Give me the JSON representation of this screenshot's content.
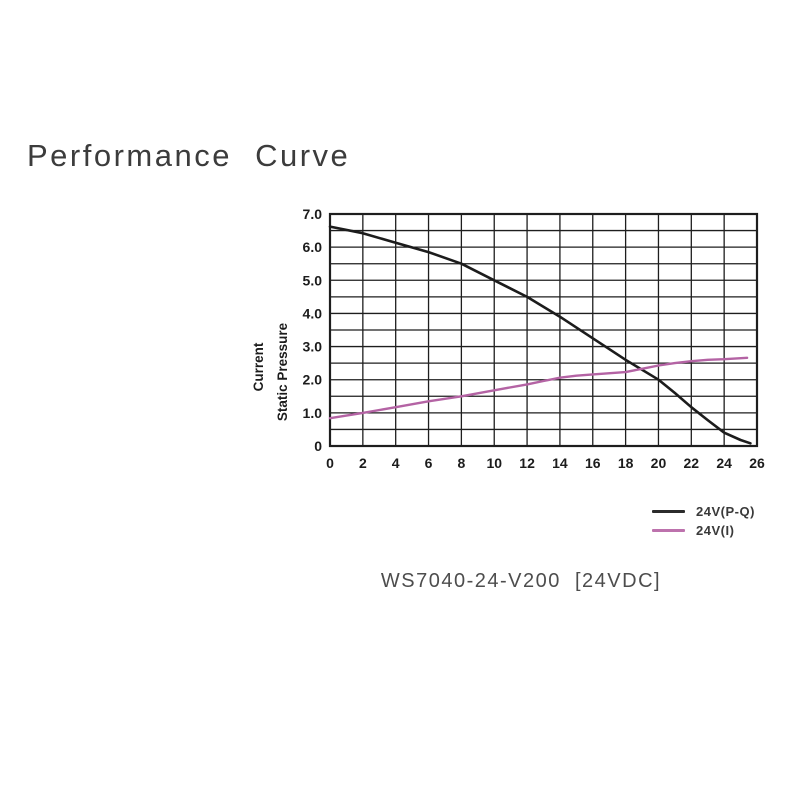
{
  "page": {
    "title": "Performance Curve",
    "caption": "WS7040-24-V200  [24VDC]"
  },
  "legend": {
    "items": [
      {
        "label": "24V(P-Q)",
        "color": "#2b2b2b"
      },
      {
        "label": "24V(I)",
        "color": "#bd72ad"
      }
    ]
  },
  "chart_data": {
    "type": "line",
    "title": "Performance Curve",
    "xlabel": "",
    "grid": true,
    "legend_position": "bottom-right",
    "x_axis": {
      "min": 0,
      "max": 26,
      "tick_step": 2,
      "grid_step": 2,
      "tick_labels": [
        "0",
        "2",
        "4",
        "6",
        "8",
        "10",
        "12",
        "14",
        "16",
        "18",
        "20",
        "22",
        "24",
        "26"
      ]
    },
    "y_axis": {
      "min": 0,
      "max": 7,
      "grid_step": 0.5,
      "label_step": 1,
      "tick_labels": [
        "7.0",
        "6.0",
        "5.0",
        "4.0",
        "3.0",
        "2.0",
        "1.0",
        "0"
      ],
      "title_lines": [
        "Current",
        "Static Pressure"
      ]
    },
    "series": [
      {
        "name": "24V(P-Q)",
        "color": "#1c1c1c",
        "points": [
          [
            0,
            6.62
          ],
          [
            2,
            6.42
          ],
          [
            4,
            6.13
          ],
          [
            6,
            5.85
          ],
          [
            8,
            5.5
          ],
          [
            10,
            5.0
          ],
          [
            12,
            4.5
          ],
          [
            14,
            3.9
          ],
          [
            16,
            3.25
          ],
          [
            18,
            2.6
          ],
          [
            20,
            2.0
          ],
          [
            21,
            1.6
          ],
          [
            22,
            1.17
          ],
          [
            23,
            0.78
          ],
          [
            24,
            0.4
          ],
          [
            25,
            0.18
          ],
          [
            25.6,
            0.08
          ]
        ]
      },
      {
        "name": "24V(I)",
        "color": "#b463a4",
        "points": [
          [
            0,
            0.84
          ],
          [
            2,
            1.0
          ],
          [
            4,
            1.17
          ],
          [
            6,
            1.35
          ],
          [
            8,
            1.5
          ],
          [
            10,
            1.68
          ],
          [
            12,
            1.86
          ],
          [
            13,
            1.96
          ],
          [
            14,
            2.06
          ],
          [
            15,
            2.12
          ],
          [
            16,
            2.16
          ],
          [
            18,
            2.23
          ],
          [
            19,
            2.33
          ],
          [
            20,
            2.43
          ],
          [
            21,
            2.5
          ],
          [
            22,
            2.56
          ],
          [
            23,
            2.6
          ],
          [
            24,
            2.62
          ],
          [
            25.4,
            2.66
          ]
        ]
      }
    ]
  }
}
